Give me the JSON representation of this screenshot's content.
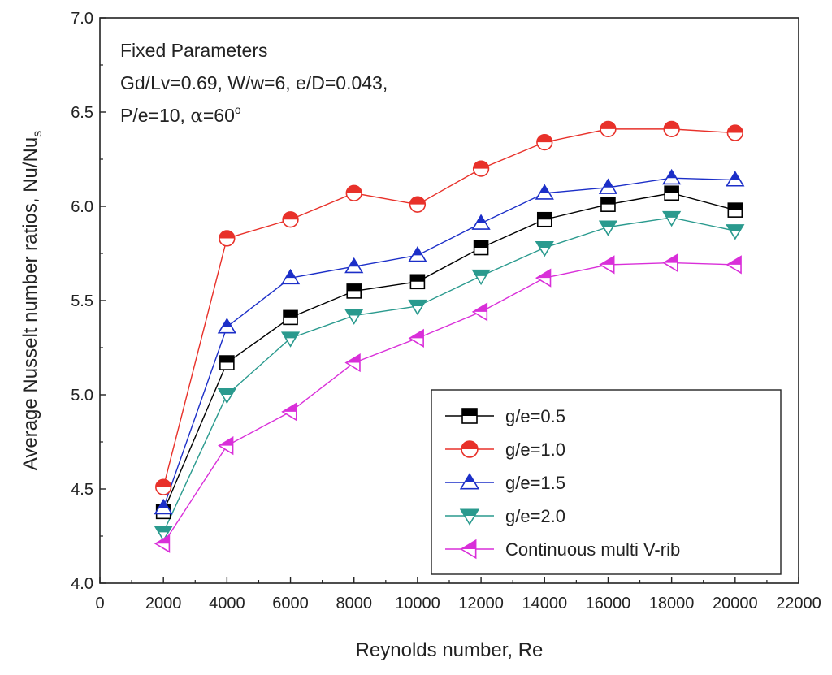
{
  "chart_data": {
    "type": "line",
    "xlabel": "Reynolds number, Re",
    "ylabel": "Average Nusselt number ratios, Nu/Nu",
    "ylabel_subscript": "s",
    "xlim": [
      0,
      22000
    ],
    "ylim": [
      4.0,
      7.0
    ],
    "xticks": [
      0,
      2000,
      4000,
      6000,
      8000,
      10000,
      12000,
      14000,
      16000,
      18000,
      20000,
      22000
    ],
    "yticks": [
      "4.0",
      "4.5",
      "5.0",
      "5.5",
      "6.0",
      "6.5",
      "7.0"
    ],
    "annotation": {
      "line1": "Fixed Parameters",
      "line2": "Gd/Lv=0.69, W/w=6, e/D=0.043,",
      "line3_prefix": "P/e=10, ",
      "line3_alpha": "α",
      "line3_value": "=60",
      "line3_degree": "o"
    },
    "x": [
      2000,
      4000,
      6000,
      8000,
      10000,
      12000,
      14000,
      16000,
      18000,
      20000
    ],
    "series": [
      {
        "name": "g/e=0.5",
        "marker": "square",
        "color": "#000000",
        "values": [
          4.38,
          5.17,
          5.41,
          5.55,
          5.6,
          5.78,
          5.93,
          6.01,
          6.07,
          5.98
        ]
      },
      {
        "name": "g/e=1.0",
        "marker": "circle",
        "color": "#e8312a",
        "values": [
          4.51,
          5.83,
          5.93,
          6.07,
          6.01,
          6.2,
          6.34,
          6.41,
          6.41,
          6.39
        ]
      },
      {
        "name": "g/e=1.5",
        "marker": "triangle-up",
        "color": "#1c2fc8",
        "values": [
          4.4,
          5.36,
          5.62,
          5.68,
          5.74,
          5.91,
          6.07,
          6.1,
          6.15,
          6.14
        ]
      },
      {
        "name": "g/e=2.0",
        "marker": "triangle-down",
        "color": "#2a9a8e",
        "values": [
          4.27,
          5.0,
          5.3,
          5.42,
          5.47,
          5.63,
          5.78,
          5.89,
          5.94,
          5.87
        ]
      },
      {
        "name": "Continuous multi V-rib",
        "marker": "triangle-left",
        "color": "#d92fd9",
        "values": [
          4.21,
          4.73,
          4.91,
          5.17,
          5.3,
          5.44,
          5.62,
          5.69,
          5.7,
          5.69
        ]
      }
    ],
    "legend_position": "bottom-right",
    "grid": false
  }
}
